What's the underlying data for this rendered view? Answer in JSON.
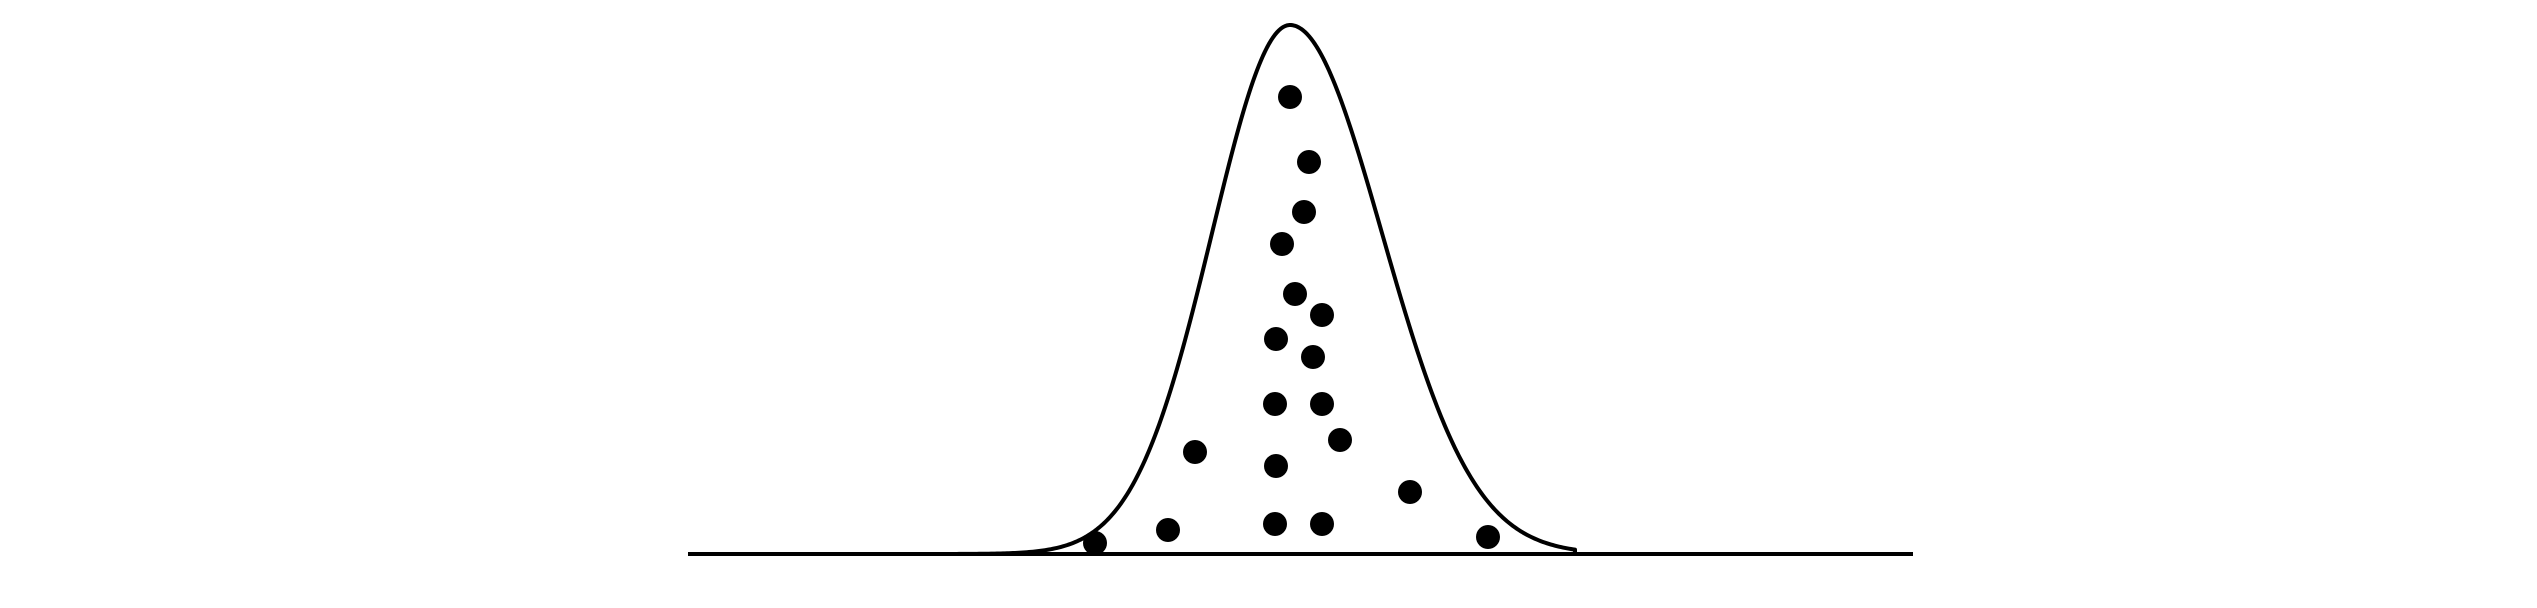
{
  "diagram": {
    "kind": "bell-curve-with-dots",
    "stroke_color": "#000000",
    "dot_color": "#000000",
    "dot_count": 20
  }
}
